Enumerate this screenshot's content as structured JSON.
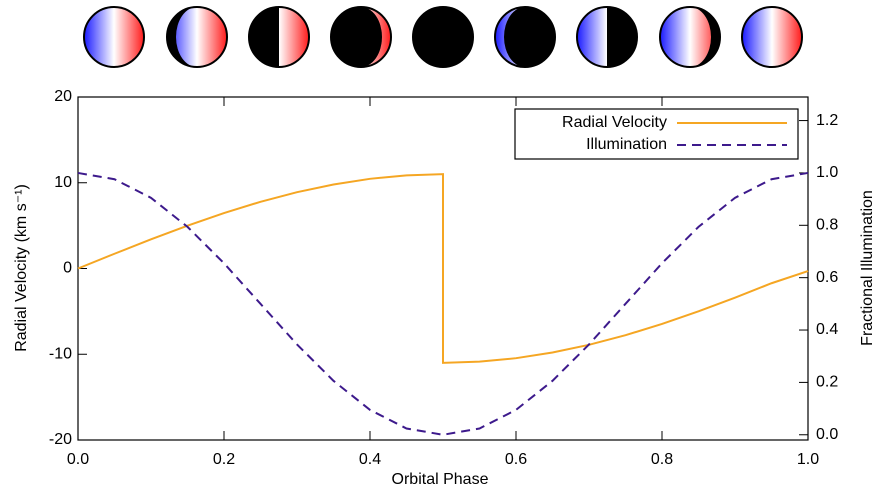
{
  "chart_data": {
    "type": "line",
    "x_label": "Orbital Phase",
    "y_label": "Radial Velocity (km s⁻¹)",
    "y2_label": "Fractional Illumination",
    "xlim": [
      0,
      1
    ],
    "xticks": [
      {
        "value": 0,
        "label": "0.0"
      },
      0.2,
      0.4,
      0.6,
      0.8,
      {
        "value": 1,
        "label": "1.0"
      }
    ],
    "ylim": [
      -20,
      20
    ],
    "yticks": [
      -20,
      -10,
      0,
      10,
      20
    ],
    "y2lim": [
      -0.02,
      1.29
    ],
    "y2ticks": [
      {
        "value": 0,
        "label": "0.0"
      },
      0.2,
      0.4,
      0.6,
      0.8,
      {
        "value": 1,
        "label": "1.0"
      },
      1.2
    ],
    "legend": "upper right",
    "series": [
      {
        "name": "Radial Velocity",
        "color": "#f5a623",
        "dash": false,
        "x": [
          0,
          0.05,
          0.1,
          0.15,
          0.2,
          0.25,
          0.3,
          0.35,
          0.4,
          0.45,
          0.5,
          0.5,
          0.55,
          0.6,
          0.65,
          0.7,
          0.75,
          0.8,
          0.85,
          0.9,
          0.95,
          1
        ],
        "values": [
          0,
          1.72,
          3.4,
          4.99,
          6.47,
          7.78,
          8.9,
          9.8,
          10.46,
          10.86,
          11,
          -11,
          -10.86,
          -10.46,
          -9.8,
          -8.9,
          -7.78,
          -6.47,
          -4.99,
          -3.4,
          -1.72,
          -0.3
        ]
      },
      {
        "name": "Illumination",
        "color": "#3d1a8c",
        "dash": true,
        "axis": "y2",
        "x": [
          0,
          0.05,
          0.1,
          0.15,
          0.2,
          0.25,
          0.3,
          0.35,
          0.4,
          0.45,
          0.5,
          0.55,
          0.6,
          0.65,
          0.7,
          0.75,
          0.8,
          0.85,
          0.9,
          0.95,
          1
        ],
        "values": [
          1,
          0.976,
          0.905,
          0.794,
          0.655,
          0.5,
          0.345,
          0.206,
          0.095,
          0.024,
          0,
          0.024,
          0.095,
          0.206,
          0.345,
          0.5,
          0.655,
          0.794,
          0.905,
          0.976,
          1
        ]
      }
    ]
  }
}
